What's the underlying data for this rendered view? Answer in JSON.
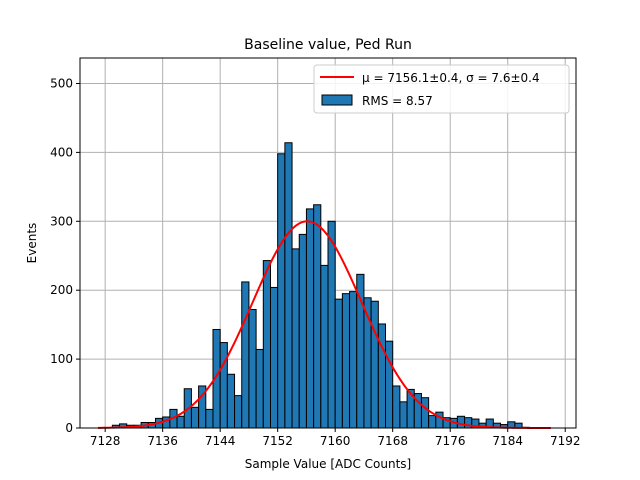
{
  "chart_data": {
    "type": "bar",
    "title": "Baseline value, Ped Run",
    "xlabel": "Sample Value [ADC Counts]",
    "ylabel": "Events",
    "xlim": [
      7124.5,
      7193.5
    ],
    "ylim": [
      0,
      537
    ],
    "xticks": [
      7128,
      7136,
      7144,
      7152,
      7160,
      7168,
      7176,
      7184,
      7192
    ],
    "yticks": [
      0,
      100,
      200,
      300,
      400,
      500
    ],
    "grid": true,
    "legend_position": "top-right",
    "legend": [
      {
        "kind": "line",
        "label": "μ = 7156.1±0.4, σ = 7.6±0.4"
      },
      {
        "kind": "patch",
        "label": "RMS = 8.57"
      }
    ],
    "histogram": {
      "name": "RMS = 8.57",
      "bin_width": 1,
      "bin_starts": [
        7129,
        7130,
        7131,
        7132,
        7133,
        7134,
        7135,
        7136,
        7137,
        7138,
        7139,
        7140,
        7141,
        7142,
        7143,
        7144,
        7145,
        7146,
        7147,
        7148,
        7149,
        7150,
        7151,
        7152,
        7153,
        7154,
        7155,
        7156,
        7157,
        7158,
        7159,
        7160,
        7161,
        7162,
        7163,
        7164,
        7165,
        7166,
        7167,
        7168,
        7169,
        7170,
        7171,
        7172,
        7173,
        7174,
        7175,
        7176,
        7177,
        7178,
        7179,
        7180,
        7181,
        7182,
        7183,
        7184,
        7185,
        7186
      ],
      "counts": [
        4,
        6,
        4,
        4,
        8,
        8,
        14,
        16,
        27,
        17,
        57,
        30,
        61,
        27,
        143,
        124,
        78,
        47,
        212,
        172,
        114,
        243,
        204,
        398,
        414,
        260,
        281,
        318,
        324,
        236,
        300,
        187,
        195,
        198,
        223,
        189,
        184,
        151,
        126,
        61,
        38,
        56,
        50,
        44,
        18,
        23,
        15,
        14,
        17,
        15,
        13,
        7,
        13,
        7,
        5,
        9,
        7,
        1
      ]
    },
    "fit": {
      "name": "μ = 7156.1±0.4, σ = 7.6±0.4",
      "mu": 7156.1,
      "sigma": 7.6,
      "amplitude": 300,
      "x_range": [
        7127,
        7190
      ],
      "color": "#ff0000"
    },
    "colors": {
      "bar_fill": "#1f77b4",
      "bar_edge": "#000000",
      "fit_line": "#ff0000",
      "grid": "#b0b0b0"
    }
  }
}
